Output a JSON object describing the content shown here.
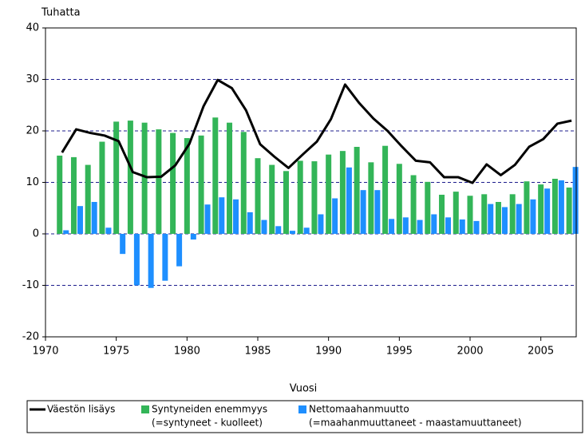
{
  "chart_data": {
    "type": "bar-line",
    "y_label": "Tuhatta",
    "x_label": "Vuosi",
    "x": [
      1971,
      1972,
      1973,
      1974,
      1975,
      1976,
      1977,
      1978,
      1979,
      1980,
      1981,
      1982,
      1983,
      1984,
      1985,
      1986,
      1987,
      1988,
      1989,
      1990,
      1991,
      1992,
      1993,
      1994,
      1995,
      1996,
      1997,
      1998,
      1999,
      2000,
      2001,
      2002,
      2003,
      2004,
      2005,
      2006,
      2007
    ],
    "xlim": [
      1970,
      2007.5
    ],
    "xticks": [
      1970,
      1975,
      1980,
      1985,
      1990,
      1995,
      2000,
      2005
    ],
    "ylim": [
      -20,
      40
    ],
    "yticks": [
      -20,
      -10,
      0,
      10,
      20,
      30,
      40
    ],
    "grid": true,
    "series": [
      {
        "name": "Väestön lisäys",
        "kind": "line",
        "color": "#000000",
        "values": [
          15.8,
          20.3,
          19.6,
          19.1,
          18.0,
          12.0,
          11.0,
          11.1,
          13.3,
          17.5,
          24.8,
          29.9,
          28.3,
          24.0,
          17.4,
          15.0,
          12.8,
          15.4,
          17.9,
          22.3,
          29.0,
          25.4,
          22.4,
          20.0,
          17.0,
          14.2,
          13.9,
          11.0,
          11.0,
          9.9,
          13.5,
          11.4,
          13.4,
          16.9,
          18.4,
          21.4,
          22.0
        ]
      },
      {
        "name": "Syntyneiden enemmyys",
        "legend_note": "(=syntyneet - kuolleet)",
        "kind": "bar",
        "color": "#33b558",
        "values": [
          15.2,
          14.9,
          13.4,
          17.9,
          21.8,
          22.0,
          21.6,
          20.3,
          19.6,
          18.6,
          19.1,
          22.6,
          21.6,
          19.8,
          14.7,
          13.4,
          12.2,
          14.2,
          14.1,
          15.4,
          16.1,
          16.9,
          13.9,
          17.1,
          13.6,
          11.4,
          10.1,
          7.6,
          8.2,
          7.4,
          7.7,
          6.2,
          7.7,
          10.2,
          9.6,
          10.7,
          9.0
        ]
      },
      {
        "name": "Nettomaahanmuutto",
        "legend_note": "(=maahanmuuttaneet - maastamuuttaneet)",
        "kind": "bar",
        "color": "#1e8fff",
        "values": [
          0.7,
          5.4,
          6.2,
          1.2,
          -3.9,
          -10.0,
          -10.5,
          -9.1,
          -6.3,
          -1.1,
          5.7,
          7.1,
          6.7,
          4.2,
          2.7,
          1.5,
          0.6,
          1.2,
          3.8,
          6.9,
          12.9,
          8.5,
          8.5,
          2.9,
          3.2,
          2.7,
          3.8,
          3.2,
          2.8,
          2.5,
          5.8,
          5.2,
          5.8,
          6.7,
          8.8,
          10.4,
          13.0
        ]
      }
    ]
  }
}
